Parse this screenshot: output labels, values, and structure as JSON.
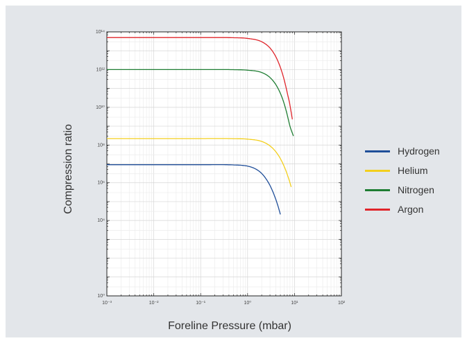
{
  "chart_data": {
    "type": "line",
    "title": "",
    "xlabel": "Foreline Pressure (mbar)",
    "ylabel": "Compression ratio",
    "xscale": "log",
    "yscale": "log",
    "xlim": [
      0.001,
      100
    ],
    "ylim": [
      1,
      100000000000000.0
    ],
    "x_tick_labels": [
      "10⁻³",
      "10⁻²",
      "10⁻¹",
      "10⁰",
      "10¹",
      "10²"
    ],
    "y_tick_labels": [
      "10⁰",
      "10⁴",
      "10⁶",
      "10⁸",
      "10¹⁰",
      "10¹²",
      "10¹⁴"
    ],
    "grid": true,
    "legend_position": "right",
    "series": [
      {
        "name": "Hydrogen",
        "color": "#1f4e99",
        "x": [
          0.001,
          0.01,
          0.1,
          0.5,
          1,
          1.5,
          2,
          2.5,
          3,
          3.5,
          4,
          4.5,
          5
        ],
        "y": [
          9000000.0,
          9000000.0,
          9000000.0,
          8800000.0,
          7600000.0,
          5300000.0,
          3100000.0,
          1550000.0,
          720000.0,
          310000.0,
          130000.0,
          53000.0,
          21000.0
        ]
      },
      {
        "name": "Helium",
        "color": "#f3cf1c",
        "x": [
          0.001,
          0.01,
          0.1,
          0.5,
          1,
          2,
          3,
          4,
          5,
          6,
          7,
          8,
          8.5
        ],
        "y": [
          220000000.0,
          220000000.0,
          220000000.0,
          218000000.0,
          205000000.0,
          155000000.0,
          90000000.0,
          44000000.0,
          19000000.0,
          7500000.0,
          2800000.0,
          1000000.0,
          600000.0
        ]
      },
      {
        "name": "Nitrogen",
        "color": "#1e7d32",
        "x": [
          0.001,
          0.01,
          0.1,
          0.5,
          1,
          2,
          3,
          4,
          5,
          6,
          7,
          8,
          9.5
        ],
        "y": [
          1000000000000.0,
          1000000000000.0,
          1000000000000.0,
          990000000000.0,
          930000000000.0,
          700000000000.0,
          380000000000.0,
          160000000000.0,
          55000000000.0,
          16000000000.0,
          4000000000.0,
          1000000000.0,
          300000000.0
        ]
      },
      {
        "name": "Argon",
        "color": "#e0242a",
        "x": [
          0.001,
          0.01,
          0.1,
          0.5,
          1,
          2,
          3,
          4,
          5,
          6,
          7,
          8,
          9
        ],
        "y": [
          50000000000000.0,
          50000000000000.0,
          50000000000000.0,
          49000000000000.0,
          45000000000000.0,
          30000000000000.0,
          14000000000000.0,
          4800000000000.0,
          1300000000000.0,
          300000000000.0,
          60000000000.0,
          13000000000.0,
          2300000000.0
        ]
      }
    ]
  }
}
